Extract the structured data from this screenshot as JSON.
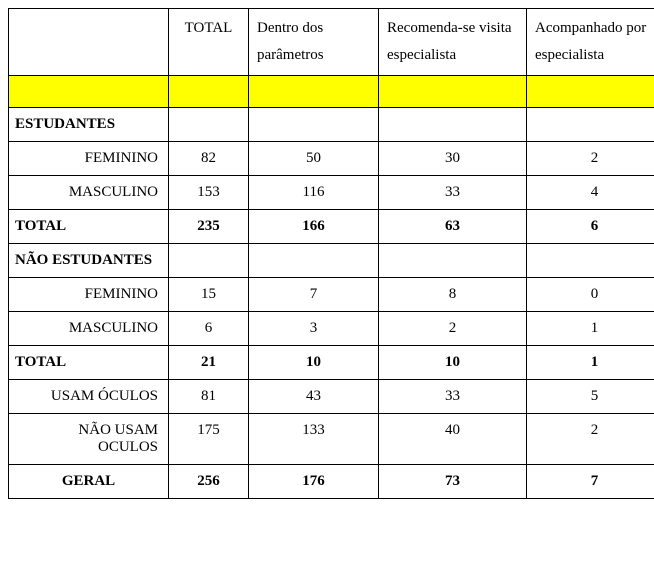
{
  "table": {
    "columns": {
      "c0": "",
      "c1": "TOTAL",
      "c2": "Dentro dos parâmetros",
      "c3": "Recomenda-se visita especialista",
      "c4": "Acompanhado por especialista"
    },
    "sections": {
      "estudantes_header": "ESTUDANTES",
      "estudantes_fem": {
        "label": "FEMININO",
        "total": "82",
        "dentro": "50",
        "recomenda": "30",
        "acomp": "2"
      },
      "estudantes_masc": {
        "label": "MASCULINO",
        "total": "153",
        "dentro": "116",
        "recomenda": "33",
        "acomp": "4"
      },
      "estudantes_total": {
        "label": "TOTAL",
        "total": "235",
        "dentro": "166",
        "recomenda": "63",
        "acomp": "6"
      },
      "nao_estudantes_header": "NÃO ESTUDANTES",
      "nao_fem": {
        "label": "FEMININO",
        "total": "15",
        "dentro": "7",
        "recomenda": "8",
        "acomp": "0"
      },
      "nao_masc": {
        "label": "MASCULINO",
        "total": "6",
        "dentro": "3",
        "recomenda": "2",
        "acomp": "1"
      },
      "nao_total": {
        "label": "TOTAL",
        "total": "21",
        "dentro": "10",
        "recomenda": "10",
        "acomp": "1"
      },
      "usam": {
        "label": "USAM ÓCULOS",
        "total": "81",
        "dentro": "43",
        "recomenda": "33",
        "acomp": "5"
      },
      "nao_usam": {
        "label": "NÃO USAM OCULOS",
        "total": "175",
        "dentro": "133",
        "recomenda": "40",
        "acomp": "2"
      },
      "geral": {
        "label": "GERAL",
        "total": "256",
        "dentro": "176",
        "recomenda": "73",
        "acomp": "7"
      }
    },
    "styling": {
      "border_color": "#000000",
      "yellow_row_color": "#ffff00",
      "background_color": "#ffffff",
      "font_family": "Times New Roman",
      "font_size": 15
    }
  }
}
